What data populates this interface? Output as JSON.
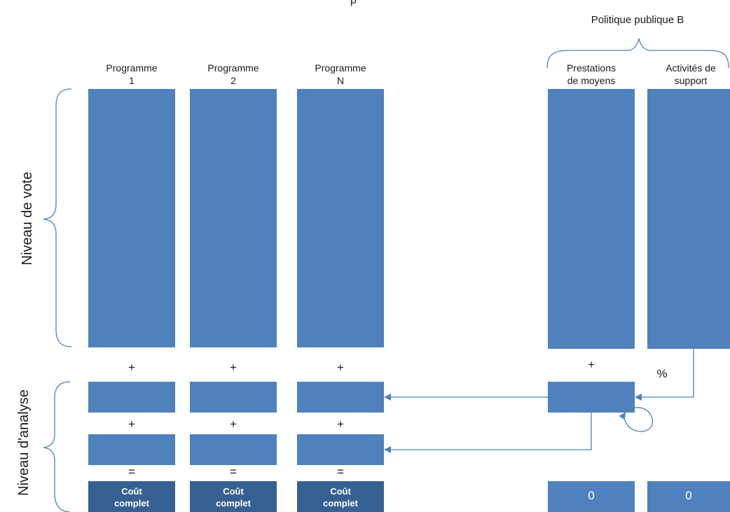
{
  "top_title_fragment": "p",
  "policy_b_title": "Politique publique B",
  "y_labels": {
    "vote_level": "Niveau de vote",
    "analysis_level": "Niveau d'analyse"
  },
  "programs": [
    {
      "label": "Programme\n1",
      "op_plus_1": "+",
      "op_plus_2": "+",
      "op_equals": "=",
      "result": "Coût\ncomplet"
    },
    {
      "label": "Programme\n2",
      "op_plus_1": "+",
      "op_plus_2": "+",
      "op_equals": "=",
      "result": "Coût\ncomplet"
    },
    {
      "label": "Programme\nN",
      "op_plus_1": "+",
      "op_plus_2": "+",
      "op_equals": "=",
      "result": "Coût\ncomplet"
    }
  ],
  "policy_b_columns": [
    {
      "label": "Prestations\nde moyens",
      "operator": "+",
      "result": "0"
    },
    {
      "label": "Activités de\nsupport",
      "operator": "%",
      "result": "0"
    }
  ],
  "colors": {
    "box": "#4e81bd",
    "box_dark": "#366092",
    "connector": "#4e81bd"
  }
}
